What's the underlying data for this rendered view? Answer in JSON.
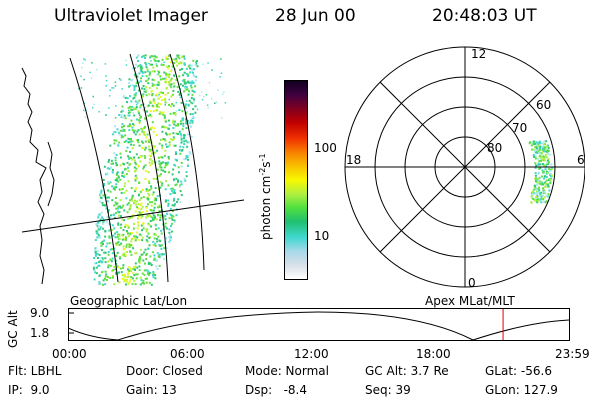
{
  "header": {
    "instrument": "Ultraviolet Imager",
    "date": "28 Jun 00",
    "time": "20:48:03 UT"
  },
  "colorbar": {
    "label_main": "photon cm",
    "label_sup1": "-2",
    "label_s": "s",
    "label_sup2": "-1",
    "ticks": [
      {
        "label": "100",
        "level": 0.56
      },
      {
        "label": "10",
        "level": 0.16
      }
    ],
    "colors": [
      "#ffffff",
      "#d8e0e8",
      "#a8d8e8",
      "#40d8d0",
      "#20c070",
      "#50e040",
      "#b0f040",
      "#f8f800",
      "#f8c000",
      "#f88000",
      "#f03000",
      "#c00000",
      "#800020",
      "#400040",
      "#100020"
    ]
  },
  "polar_plot": {
    "ring_labels": [
      {
        "text": "60",
        "lat": 60
      },
      {
        "text": "70",
        "lat": 70
      },
      {
        "text": "80",
        "lat": 80
      }
    ],
    "clock_labels": [
      {
        "text": "12",
        "pos": "top"
      },
      {
        "text": "18",
        "pos": "left"
      },
      {
        "text": "6",
        "pos": "right"
      },
      {
        "text": "0",
        "pos": "bottom"
      }
    ]
  },
  "map_labels": {
    "left": "Geographic Lat/Lon",
    "right": "Apex MLat/MLT"
  },
  "altitude_plot": {
    "ylabel": "GC Alt",
    "yticks": [
      "9.0",
      "1.8"
    ],
    "xticks": [
      "00:00",
      "06:00",
      "12:00",
      "18:00",
      "23:59"
    ],
    "marker_time_hours": 20.8
  },
  "footer": {
    "rows": [
      [
        "Flt: LBHL",
        "Door: Closed",
        "Mode: Normal",
        "GC Alt: 3.7 Re",
        "GLat: -56.6"
      ],
      [
        "IP:  9.0",
        "Gain: 13",
        "Dsp:   -8.4",
        "Seq: 39",
        "GLon: 127.9"
      ]
    ]
  }
}
